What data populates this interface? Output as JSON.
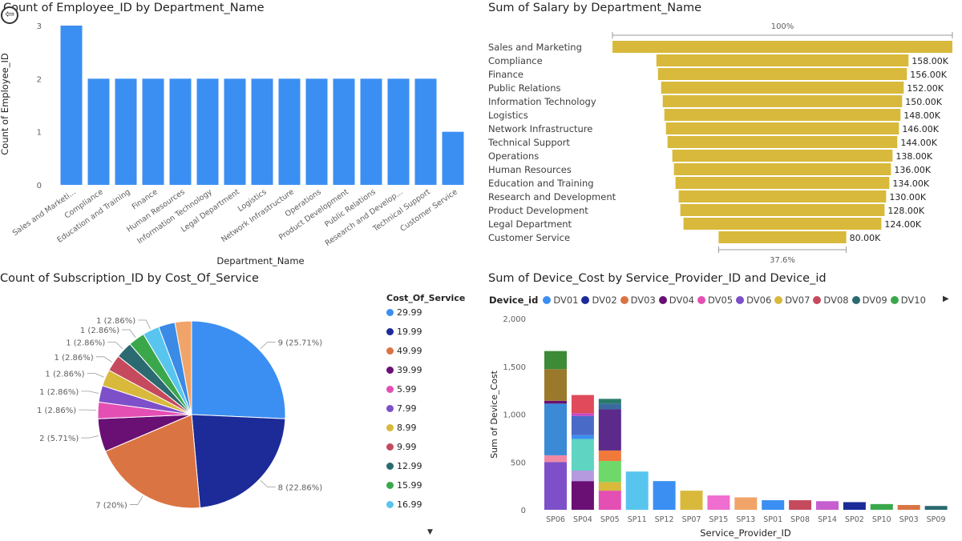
{
  "report": {
    "back_icon": "back-arrow-icon"
  },
  "chart_data": [
    {
      "type": "bar",
      "title": "Count of Employee_ID by Department_Name",
      "xlabel": "Department_Name",
      "ylabel": "Count of Employee_ID",
      "ylim": [
        0,
        3
      ],
      "yticks": [
        0,
        1,
        2,
        3
      ],
      "color": "#3b8ff2",
      "categories": [
        "Sales and Marketi...",
        "Compliance",
        "Education and Training",
        "Finance",
        "Human Resources",
        "Information Technology",
        "Legal Department",
        "Logistics",
        "Network Infrastructure",
        "Operations",
        "Product Development",
        "Public Relations",
        "Research and Develop...",
        "Technical Support",
        "Customer Service"
      ],
      "values": [
        3,
        2,
        2,
        2,
        2,
        2,
        2,
        2,
        2,
        2,
        2,
        2,
        2,
        2,
        1
      ],
      "grid": false
    },
    {
      "type": "funnel",
      "title": "Sum of Salary by Department_Name",
      "color": "#d8b93b",
      "top_label": "100%",
      "bottom_label": "37.6%",
      "categories": [
        "Sales and Marketing",
        "Compliance",
        "Finance",
        "Public Relations",
        "Information Technology",
        "Logistics",
        "Network Infrastructure",
        "Technical Support",
        "Operations",
        "Human Resources",
        "Education and Training",
        "Research and Development",
        "Product Development",
        "Legal Department",
        "Customer Service"
      ],
      "values": [
        213000,
        158000,
        156000,
        152000,
        150000,
        148000,
        146000,
        144000,
        138000,
        136000,
        134000,
        130000,
        128000,
        124000,
        80000
      ],
      "value_labels": [
        "",
        "158.00K",
        "156.00K",
        "152.00K",
        "150.00K",
        "148.00K",
        "146.00K",
        "144.00K",
        "138.00K",
        "136.00K",
        "134.00K",
        "130.00K",
        "128.00K",
        "124.00K",
        "80.00K"
      ]
    },
    {
      "type": "pie",
      "title": "Count of Subscription_ID by Cost_Of_Service",
      "legend_title": "Cost_Of_Service",
      "legend_position": "right",
      "slices": [
        {
          "label": "29.99",
          "value": 9,
          "display": "9 (25.71%)",
          "color": "#3b8ff2"
        },
        {
          "label": "19.99",
          "value": 8,
          "display": "8 (22.86%)",
          "color": "#1c2b98"
        },
        {
          "label": "49.99",
          "value": 7,
          "display": "7 (20%)",
          "color": "#db7443"
        },
        {
          "label": "39.99",
          "value": 2,
          "display": "2 (5.71%)",
          "color": "#6a0f74"
        },
        {
          "label": "5.99",
          "value": 1,
          "display": "1 (2.86%)",
          "color": "#e44fb4"
        },
        {
          "label": "7.99",
          "value": 1,
          "display": "1 (2.86%)",
          "color": "#7d50c9"
        },
        {
          "label": "8.99",
          "value": 1,
          "display": "1 (2.86%)",
          "color": "#d8b93b"
        },
        {
          "label": "9.99",
          "value": 1,
          "display": "1 (2.86%)",
          "color": "#c64a5d"
        },
        {
          "label": "12.99",
          "value": 1,
          "display": "1 (2.86%)",
          "color": "#2a6a70"
        },
        {
          "label": "15.99",
          "value": 1,
          "display": "1 (2.86%)",
          "color": "#3aa84a"
        },
        {
          "label": "16.99",
          "value": 1,
          "display": "1 (2.86%)",
          "color": "#58c5ee"
        },
        {
          "label": "",
          "value": 1,
          "display": "",
          "color": "#3a8ae6"
        },
        {
          "label": "",
          "value": 1,
          "display": "",
          "color": "#f0a46a"
        }
      ]
    },
    {
      "type": "stacked-bar",
      "title": "Sum of Device_Cost by Service_Provider_ID and Device_id",
      "xlabel": "Service_Provider_ID",
      "ylabel": "Sum of Device_Cost",
      "ylim": [
        0,
        2000
      ],
      "yticks": [
        0,
        500,
        1000,
        1500,
        2000
      ],
      "ytick_labels": [
        "0",
        "500",
        "1,000",
        "1,500",
        "2,000"
      ],
      "legend_title": "Device_id",
      "legend_position": "top",
      "legend": [
        {
          "name": "DV01",
          "color": "#3b8ff2"
        },
        {
          "name": "DV02",
          "color": "#1c2b98"
        },
        {
          "name": "DV03",
          "color": "#db7443"
        },
        {
          "name": "DV04",
          "color": "#6a0f74"
        },
        {
          "name": "DV05",
          "color": "#e44fb4"
        },
        {
          "name": "DV06",
          "color": "#7d50c9"
        },
        {
          "name": "DV07",
          "color": "#d8b93b"
        },
        {
          "name": "DV08",
          "color": "#c64a5d"
        },
        {
          "name": "DV09",
          "color": "#2a6a70"
        },
        {
          "name": "DV10",
          "color": "#3aa84a"
        }
      ],
      "categories": [
        "SP06",
        "SP04",
        "SP05",
        "SP11",
        "SP12",
        "SP07",
        "SP15",
        "SP13",
        "SP01",
        "SP08",
        "SP14",
        "SP02",
        "SP10",
        "SP03",
        "SP09"
      ],
      "stacks": [
        [
          {
            "v": 500,
            "c": "#7d50c9"
          },
          {
            "v": 70,
            "c": "#f089a4"
          },
          {
            "v": 540,
            "c": "#3a8ad6"
          },
          {
            "v": 30,
            "c": "#6a0f74"
          },
          {
            "v": 330,
            "c": "#9a7a2a"
          },
          {
            "v": 190,
            "c": "#3d8a37"
          }
        ],
        [
          {
            "v": 300,
            "c": "#6a0f74"
          },
          {
            "v": 110,
            "c": "#b69ae0"
          },
          {
            "v": 330,
            "c": "#5fd4c2"
          },
          {
            "v": 40,
            "c": "#3b8ff2"
          },
          {
            "v": 200,
            "c": "#4a6ac8"
          },
          {
            "v": 30,
            "c": "#c54bc4"
          },
          {
            "v": 190,
            "c": "#e04a5a"
          }
        ],
        [
          {
            "v": 200,
            "c": "#e44fb4"
          },
          {
            "v": 90,
            "c": "#d8b93b"
          },
          {
            "v": 220,
            "c": "#6fd86a"
          },
          {
            "v": 110,
            "c": "#f07a3a"
          },
          {
            "v": 430,
            "c": "#5c2a8a"
          },
          {
            "v": 60,
            "c": "#3a6aa0"
          },
          {
            "v": 50,
            "c": "#2a7a6a"
          }
        ],
        [
          {
            "v": 400,
            "c": "#58c5ee"
          }
        ],
        [
          {
            "v": 300,
            "c": "#3b8ff2"
          }
        ],
        [
          {
            "v": 200,
            "c": "#d8b93b"
          }
        ],
        [
          {
            "v": 150,
            "c": "#f06ecf"
          }
        ],
        [
          {
            "v": 130,
            "c": "#f0a46a"
          }
        ],
        [
          {
            "v": 100,
            "c": "#3b8ff2"
          }
        ],
        [
          {
            "v": 100,
            "c": "#c64a5d"
          }
        ],
        [
          {
            "v": 90,
            "c": "#c75ed0"
          }
        ],
        [
          {
            "v": 80,
            "c": "#1c2b98"
          }
        ],
        [
          {
            "v": 60,
            "c": "#3aa84a"
          }
        ],
        [
          {
            "v": 50,
            "c": "#db7443"
          }
        ],
        [
          {
            "v": 40,
            "c": "#2a6a70"
          }
        ]
      ]
    }
  ]
}
